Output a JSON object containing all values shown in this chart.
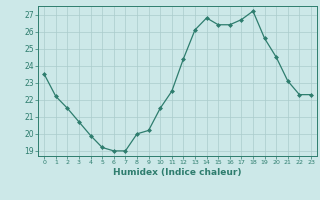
{
  "x": [
    0,
    1,
    2,
    3,
    4,
    5,
    6,
    7,
    8,
    9,
    10,
    11,
    12,
    13,
    14,
    15,
    16,
    17,
    18,
    19,
    20,
    21,
    22,
    23
  ],
  "y": [
    23.5,
    22.2,
    21.5,
    20.7,
    19.9,
    19.2,
    19.0,
    19.0,
    20.0,
    20.2,
    21.5,
    22.5,
    24.4,
    26.1,
    26.8,
    26.4,
    26.4,
    26.7,
    27.2,
    25.6,
    24.5,
    23.1,
    22.3,
    22.3
  ],
  "xlabel": "Humidex (Indice chaleur)",
  "ylim_min": 18.7,
  "ylim_max": 27.5,
  "yticks": [
    19,
    20,
    21,
    22,
    23,
    24,
    25,
    26,
    27
  ],
  "xticks": [
    0,
    1,
    2,
    3,
    4,
    5,
    6,
    7,
    8,
    9,
    10,
    11,
    12,
    13,
    14,
    15,
    16,
    17,
    18,
    19,
    20,
    21,
    22,
    23
  ],
  "line_color": "#2e7d6e",
  "marker_color": "#2e7d6e",
  "bg_color": "#cce8e8",
  "grid_color": "#aacccc",
  "tick_color": "#2e7d6e",
  "label_color": "#2e7d6e"
}
